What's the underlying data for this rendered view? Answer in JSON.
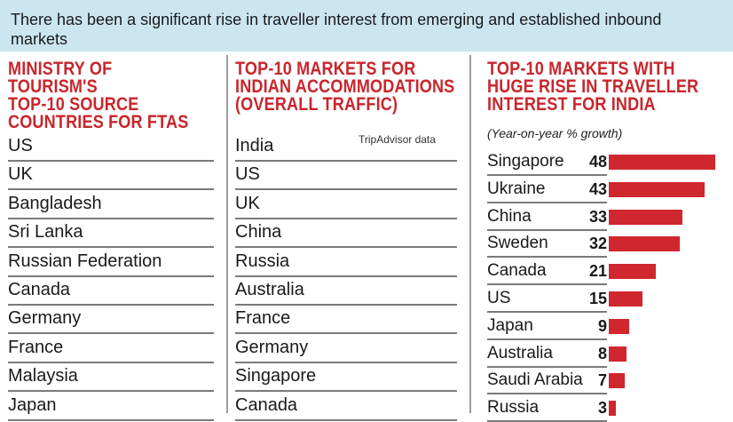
{
  "header": {
    "top_cut_text": "• • • • • • • • • • • • • • • • •",
    "subtitle": "There has been a significant rise in traveller interest from emerging and established inbound markets"
  },
  "column_a": {
    "title": "MINISTRY OF TOURISM'S\nTOP-10 SOURCE\nCOUNTRIES FOR FTAs",
    "items": [
      "US",
      "UK",
      "Bangladesh",
      "Sri Lanka",
      "Russian Federation",
      "Canada",
      "Germany",
      "France",
      "Malaysia",
      "Japan"
    ]
  },
  "column_b": {
    "title": "TOP-10 MARKETS FOR\nINDIAN ACCOMMODATIONS\n(OVERALL TRAFFIC)",
    "source": "TripAdvisor data",
    "items": [
      "India",
      "US",
      "UK",
      "China",
      "Russia",
      "Australia",
      "France",
      "Germany",
      "Singapore",
      "Canada"
    ]
  },
  "chart_data": {
    "type": "bar",
    "orientation": "horizontal",
    "title": "TOP-10 MARKETS WITH\nHUGE RISE IN TRAVELLER\nINTEREST FOR INDIA",
    "subtitle": "(Year-on-year % growth)",
    "categories": [
      "Singapore",
      "Ukraine",
      "China",
      "Sweden",
      "Canada",
      "US",
      "Japan",
      "Australia",
      "Saudi Arabia",
      "Russia"
    ],
    "values": [
      48,
      43,
      33,
      32,
      21,
      15,
      9,
      8,
      7,
      3
    ],
    "xlim": [
      0,
      48
    ],
    "bar_color": "#d0272f"
  }
}
